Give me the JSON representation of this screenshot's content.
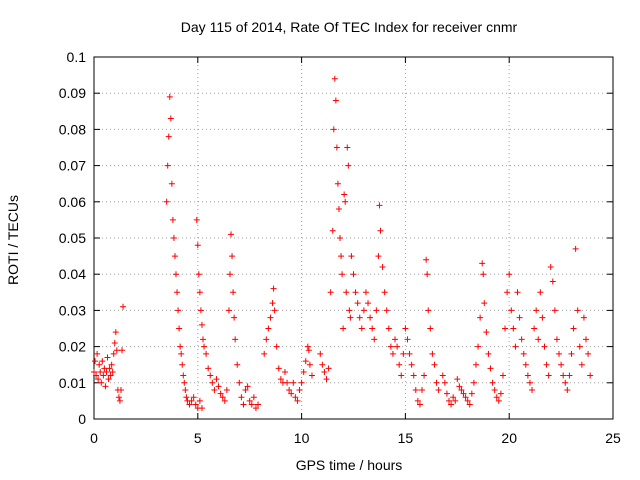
{
  "chart_data": {
    "type": "scatter",
    "title": "Day 115 of 2014, Rate Of TEC Index for receiver cnmr",
    "xlabel": "GPS time / hours",
    "ylabel": "ROTI / TECUs",
    "xlim": [
      0,
      25
    ],
    "ylim": [
      0,
      0.1
    ],
    "x_ticks": [
      "0",
      "5",
      "10",
      "15",
      "20",
      "25"
    ],
    "y_ticks": [
      "0",
      "0.01",
      "0.02",
      "0.03",
      "0.04",
      "0.05",
      "0.06",
      "0.07",
      "0.08",
      "0.09",
      "0.1"
    ],
    "grid": true,
    "legend": "none",
    "marker": "+",
    "colors": {
      "points": "#ff0000",
      "grid": "#a0a0a0",
      "axes": "#000000"
    },
    "series": [
      {
        "values": [
          [
            0.0,
            0.013
          ],
          [
            0.05,
            0.016
          ],
          [
            0.1,
            0.012
          ],
          [
            0.15,
            0.018
          ],
          [
            0.2,
            0.011
          ],
          [
            0.25,
            0.015
          ],
          [
            0.3,
            0.013
          ],
          [
            0.35,
            0.01
          ],
          [
            0.4,
            0.016
          ],
          [
            0.45,
            0.012
          ],
          [
            0.5,
            0.014
          ],
          [
            0.55,
            0.009
          ],
          [
            0.6,
            0.013
          ],
          [
            0.65,
            0.017
          ],
          [
            0.7,
            0.011
          ],
          [
            0.75,
            0.014
          ],
          [
            0.8,
            0.012
          ],
          [
            0.85,
            0.015
          ],
          [
            0.9,
            0.013
          ],
          [
            0.95,
            0.018
          ],
          [
            1.0,
            0.021
          ],
          [
            1.05,
            0.024
          ],
          [
            1.1,
            0.019
          ],
          [
            1.15,
            0.008
          ],
          [
            1.2,
            0.006
          ],
          [
            1.25,
            0.005
          ],
          [
            1.3,
            0.008
          ],
          [
            1.35,
            0.019
          ],
          [
            1.4,
            0.031
          ],
          [
            3.5,
            0.06
          ],
          [
            3.55,
            0.07
          ],
          [
            3.6,
            0.078
          ],
          [
            3.65,
            0.089
          ],
          [
            3.7,
            0.083
          ],
          [
            3.75,
            0.065
          ],
          [
            3.8,
            0.055
          ],
          [
            3.85,
            0.05
          ],
          [
            3.9,
            0.045
          ],
          [
            3.95,
            0.04
          ],
          [
            4.0,
            0.035
          ],
          [
            4.05,
            0.03
          ],
          [
            4.1,
            0.025
          ],
          [
            4.15,
            0.02
          ],
          [
            4.2,
            0.018
          ],
          [
            4.25,
            0.015
          ],
          [
            4.3,
            0.012
          ],
          [
            4.35,
            0.01
          ],
          [
            4.4,
            0.008
          ],
          [
            4.45,
            0.006
          ],
          [
            4.5,
            0.005
          ],
          [
            4.6,
            0.004
          ],
          [
            4.7,
            0.005
          ],
          [
            4.8,
            0.006
          ],
          [
            4.9,
            0.004
          ],
          [
            5.0,
            0.003
          ],
          [
            5.1,
            0.005
          ],
          [
            5.2,
            0.003
          ],
          [
            4.95,
            0.055
          ],
          [
            5.0,
            0.048
          ],
          [
            5.05,
            0.04
          ],
          [
            5.1,
            0.035
          ],
          [
            5.15,
            0.03
          ],
          [
            5.2,
            0.026
          ],
          [
            5.25,
            0.022
          ],
          [
            5.3,
            0.02
          ],
          [
            5.4,
            0.018
          ],
          [
            5.5,
            0.014
          ],
          [
            5.6,
            0.012
          ],
          [
            5.7,
            0.01
          ],
          [
            5.8,
            0.008
          ],
          [
            5.9,
            0.011
          ],
          [
            6.0,
            0.009
          ],
          [
            6.1,
            0.007
          ],
          [
            6.2,
            0.006
          ],
          [
            6.3,
            0.005
          ],
          [
            6.4,
            0.008
          ],
          [
            6.5,
            0.03
          ],
          [
            6.55,
            0.04
          ],
          [
            6.6,
            0.051
          ],
          [
            6.65,
            0.045
          ],
          [
            6.7,
            0.035
          ],
          [
            6.75,
            0.028
          ],
          [
            6.8,
            0.022
          ],
          [
            6.9,
            0.015
          ],
          [
            7.0,
            0.01
          ],
          [
            7.1,
            0.006
          ],
          [
            7.2,
            0.004
          ],
          [
            7.3,
            0.008
          ],
          [
            7.4,
            0.009
          ],
          [
            7.5,
            0.005
          ],
          [
            7.6,
            0.004
          ],
          [
            7.7,
            0.006
          ],
          [
            7.8,
            0.003
          ],
          [
            7.9,
            0.004
          ],
          [
            8.2,
            0.018
          ],
          [
            8.3,
            0.022
          ],
          [
            8.4,
            0.025
          ],
          [
            8.5,
            0.028
          ],
          [
            8.6,
            0.032
          ],
          [
            8.65,
            0.036
          ],
          [
            8.7,
            0.03
          ],
          [
            8.8,
            0.02
          ],
          [
            8.9,
            0.014
          ],
          [
            9.0,
            0.011
          ],
          [
            9.1,
            0.01
          ],
          [
            9.2,
            0.013
          ],
          [
            9.3,
            0.01
          ],
          [
            9.4,
            0.008
          ],
          [
            9.5,
            0.007
          ],
          [
            9.6,
            0.01
          ],
          [
            9.7,
            0.006
          ],
          [
            9.8,
            0.005
          ],
          [
            9.9,
            0.008
          ],
          [
            10.0,
            0.01
          ],
          [
            10.1,
            0.013
          ],
          [
            10.2,
            0.016
          ],
          [
            10.3,
            0.02
          ],
          [
            10.35,
            0.019
          ],
          [
            10.4,
            0.015
          ],
          [
            10.5,
            0.012
          ],
          [
            10.9,
            0.018
          ],
          [
            11.0,
            0.015
          ],
          [
            11.1,
            0.013
          ],
          [
            11.2,
            0.011
          ],
          [
            11.3,
            0.014
          ],
          [
            11.4,
            0.035
          ],
          [
            11.5,
            0.052
          ],
          [
            11.55,
            0.08
          ],
          [
            11.6,
            0.094
          ],
          [
            11.65,
            0.088
          ],
          [
            11.7,
            0.075
          ],
          [
            11.75,
            0.065
          ],
          [
            11.8,
            0.058
          ],
          [
            11.85,
            0.05
          ],
          [
            11.9,
            0.045
          ],
          [
            11.95,
            0.04
          ],
          [
            12.0,
            0.025
          ],
          [
            12.05,
            0.062
          ],
          [
            12.1,
            0.06
          ],
          [
            12.15,
            0.035
          ],
          [
            12.2,
            0.075
          ],
          [
            12.25,
            0.07
          ],
          [
            12.3,
            0.03
          ],
          [
            12.35,
            0.028
          ],
          [
            12.4,
            0.045
          ],
          [
            12.5,
            0.04
          ],
          [
            12.6,
            0.035
          ],
          [
            12.7,
            0.032
          ],
          [
            12.8,
            0.028
          ],
          [
            12.9,
            0.025
          ],
          [
            13.0,
            0.03
          ],
          [
            13.1,
            0.035
          ],
          [
            13.2,
            0.032
          ],
          [
            13.3,
            0.028
          ],
          [
            13.4,
            0.025
          ],
          [
            13.5,
            0.022
          ],
          [
            13.6,
            0.03
          ],
          [
            13.7,
            0.045
          ],
          [
            13.75,
            0.059
          ],
          [
            13.8,
            0.052
          ],
          [
            13.9,
            0.042
          ],
          [
            14.0,
            0.035
          ],
          [
            14.1,
            0.03
          ],
          [
            14.2,
            0.025
          ],
          [
            14.3,
            0.02
          ],
          [
            14.4,
            0.018
          ],
          [
            14.5,
            0.022
          ],
          [
            14.6,
            0.02
          ],
          [
            14.7,
            0.015
          ],
          [
            14.8,
            0.012
          ],
          [
            14.9,
            0.018
          ],
          [
            15.0,
            0.025
          ],
          [
            15.1,
            0.022
          ],
          [
            15.2,
            0.018
          ],
          [
            15.3,
            0.015
          ],
          [
            15.4,
            0.012
          ],
          [
            15.5,
            0.008
          ],
          [
            15.6,
            0.005
          ],
          [
            15.7,
            0.004
          ],
          [
            15.8,
            0.008
          ],
          [
            15.9,
            0.012
          ],
          [
            16.0,
            0.044
          ],
          [
            16.05,
            0.04
          ],
          [
            16.1,
            0.03
          ],
          [
            16.2,
            0.025
          ],
          [
            16.3,
            0.018
          ],
          [
            16.4,
            0.015
          ],
          [
            16.5,
            0.01
          ],
          [
            16.6,
            0.008
          ],
          [
            16.8,
            0.012
          ],
          [
            16.9,
            0.01
          ],
          [
            17.0,
            0.007
          ],
          [
            17.1,
            0.005
          ],
          [
            17.2,
            0.004
          ],
          [
            17.3,
            0.006
          ],
          [
            17.4,
            0.005
          ],
          [
            17.5,
            0.011
          ],
          [
            17.6,
            0.009
          ],
          [
            17.7,
            0.008
          ],
          [
            17.8,
            0.007
          ],
          [
            17.9,
            0.006
          ],
          [
            18.0,
            0.005
          ],
          [
            18.1,
            0.004
          ],
          [
            18.2,
            0.007
          ],
          [
            18.3,
            0.01
          ],
          [
            18.4,
            0.015
          ],
          [
            18.5,
            0.02
          ],
          [
            18.6,
            0.028
          ],
          [
            18.7,
            0.043
          ],
          [
            18.75,
            0.04
          ],
          [
            18.8,
            0.032
          ],
          [
            18.9,
            0.024
          ],
          [
            19.0,
            0.018
          ],
          [
            19.1,
            0.014
          ],
          [
            19.2,
            0.01
          ],
          [
            19.3,
            0.008
          ],
          [
            19.4,
            0.006
          ],
          [
            19.5,
            0.005
          ],
          [
            19.6,
            0.007
          ],
          [
            19.7,
            0.012
          ],
          [
            19.8,
            0.025
          ],
          [
            19.9,
            0.035
          ],
          [
            20.0,
            0.04
          ],
          [
            20.1,
            0.03
          ],
          [
            20.2,
            0.025
          ],
          [
            20.3,
            0.02
          ],
          [
            20.4,
            0.035
          ],
          [
            20.5,
            0.028
          ],
          [
            20.6,
            0.022
          ],
          [
            20.7,
            0.018
          ],
          [
            20.8,
            0.015
          ],
          [
            20.9,
            0.012
          ],
          [
            21.0,
            0.01
          ],
          [
            21.1,
            0.008
          ],
          [
            21.2,
            0.025
          ],
          [
            21.3,
            0.03
          ],
          [
            21.4,
            0.022
          ],
          [
            21.5,
            0.035
          ],
          [
            21.6,
            0.028
          ],
          [
            21.7,
            0.02
          ],
          [
            21.8,
            0.015
          ],
          [
            21.9,
            0.012
          ],
          [
            22.0,
            0.042
          ],
          [
            22.1,
            0.038
          ],
          [
            22.2,
            0.03
          ],
          [
            22.3,
            0.022
          ],
          [
            22.4,
            0.018
          ],
          [
            22.5,
            0.015
          ],
          [
            22.6,
            0.012
          ],
          [
            22.7,
            0.01
          ],
          [
            22.8,
            0.008
          ],
          [
            22.9,
            0.012
          ],
          [
            23.0,
            0.018
          ],
          [
            23.1,
            0.025
          ],
          [
            23.2,
            0.047
          ],
          [
            23.3,
            0.03
          ],
          [
            23.4,
            0.02
          ],
          [
            23.5,
            0.015
          ],
          [
            23.6,
            0.028
          ],
          [
            23.7,
            0.022
          ],
          [
            23.8,
            0.018
          ],
          [
            23.9,
            0.012
          ]
        ]
      }
    ]
  }
}
